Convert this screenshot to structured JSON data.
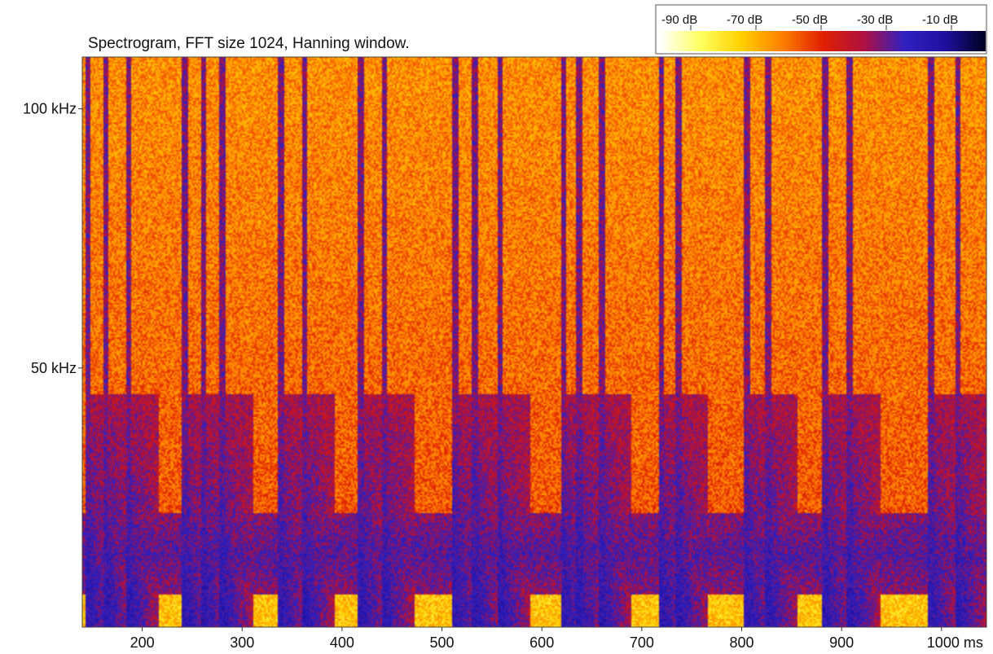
{
  "chart_data": {
    "type": "heatmap",
    "title": "Spectrogram, FFT size 1024, Hanning window.",
    "x_axis": {
      "unit": "ms",
      "range": [
        140,
        1045
      ],
      "ticks": [
        {
          "value": 200,
          "label": "200"
        },
        {
          "value": 300,
          "label": "300"
        },
        {
          "value": 400,
          "label": "400"
        },
        {
          "value": 500,
          "label": "500"
        },
        {
          "value": 600,
          "label": "600"
        },
        {
          "value": 700,
          "label": "700"
        },
        {
          "value": 800,
          "label": "800"
        },
        {
          "value": 900,
          "label": "900"
        },
        {
          "value": 1000,
          "label": "1000 ms"
        }
      ]
    },
    "y_axis": {
      "unit": "kHz",
      "range": [
        0,
        110
      ],
      "ticks": [
        {
          "value": 50,
          "label": "50 kHz"
        },
        {
          "value": 100,
          "label": "100 kHz"
        }
      ]
    },
    "colorbar": {
      "range_db": [
        -100,
        0
      ],
      "labels": [
        "-90 dB",
        "-70 dB",
        "-50 dB",
        "-30 dB",
        "-10 dB"
      ],
      "stops": [
        "#ffffff",
        "#ffff60",
        "#ffd000",
        "#ff8000",
        "#e02000",
        "#b01040",
        "#3020c0",
        "#2010a0",
        "#000020"
      ]
    },
    "background_noise_db": -55,
    "low_band": {
      "center_khz": 14,
      "width_khz": 8,
      "level_db": -28
    },
    "pulses_ms": [
      145,
      163,
      186,
      242,
      261,
      280,
      338,
      362,
      419,
      442,
      513,
      533,
      558,
      622,
      637,
      660,
      720,
      737,
      806,
      827,
      884,
      909,
      990,
      1017
    ]
  }
}
